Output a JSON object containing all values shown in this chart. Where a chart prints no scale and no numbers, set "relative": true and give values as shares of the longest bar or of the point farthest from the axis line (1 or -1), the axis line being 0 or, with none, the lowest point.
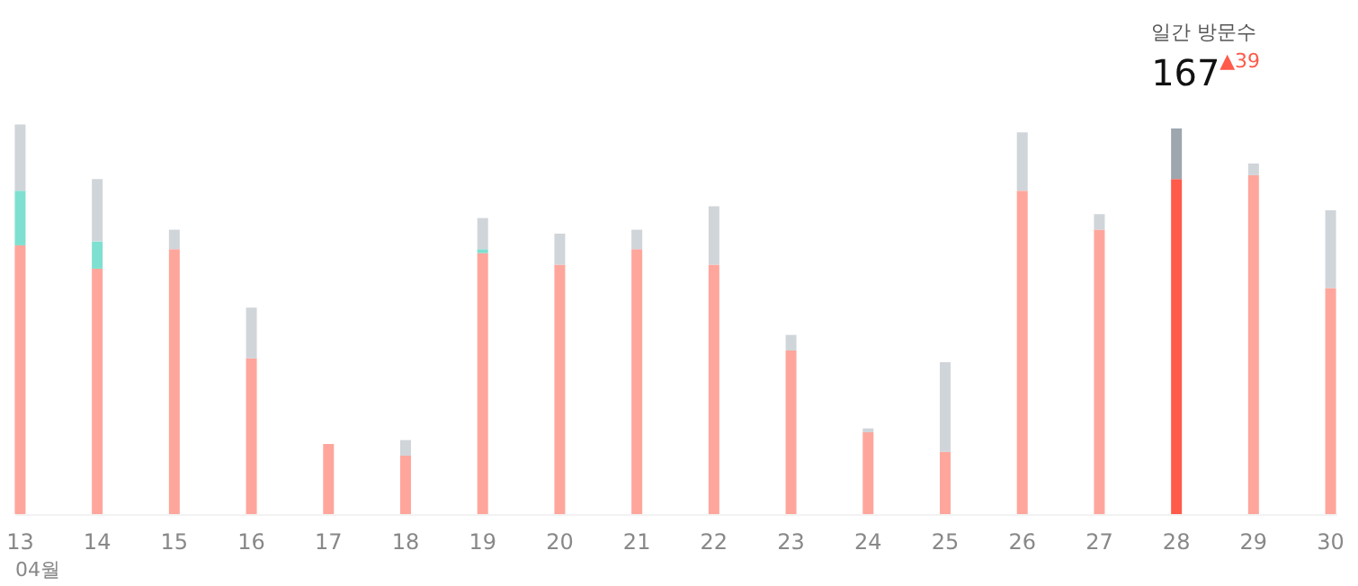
{
  "chart_data": {
    "type": "bar",
    "stacked": true,
    "relative": true,
    "xlabel": "04월",
    "categories": [
      "13",
      "14",
      "15",
      "16",
      "17",
      "18",
      "19",
      "20",
      "21",
      "22",
      "23",
      "24",
      "25",
      "26",
      "27",
      "28",
      "29",
      "30"
    ],
    "series": [
      {
        "colors": [
          "#ffa69c",
          "#ffa69c",
          "#ffa69c",
          "#ffa69c",
          "#ffa69c",
          "#ffa69c",
          "#ffa69c",
          "#ffa69c",
          "#ffa69c",
          "#ffa69c",
          "#ffa69c",
          "#ffa69c",
          "#ffa69c",
          "#ffa69c",
          "#ffa69c",
          "#ff5a4a",
          "#ffa69c",
          "#ffa69c"
        ],
        "values": [
          0.69,
          0.63,
          0.68,
          0.4,
          0.18,
          0.15,
          0.67,
          0.64,
          0.68,
          0.64,
          0.42,
          0.21,
          0.16,
          0.83,
          0.73,
          0.86,
          0.87,
          0.58
        ]
      },
      {
        "color": "#7ee0d0",
        "values": [
          0.14,
          0.07,
          0,
          0,
          0,
          0,
          0.01,
          0,
          0,
          0,
          0,
          0,
          0,
          0,
          0,
          0,
          0,
          0
        ]
      },
      {
        "colors": [
          "#d0d5da",
          "#d0d5da",
          "#d0d5da",
          "#d0d5da",
          "#d0d5da",
          "#d0d5da",
          "#d0d5da",
          "#d0d5da",
          "#d0d5da",
          "#d0d5da",
          "#d0d5da",
          "#d0d5da",
          "#d0d5da",
          "#d0d5da",
          "#d0d5da",
          "#9ea6ae",
          "#d0d5da",
          "#d0d5da"
        ],
        "values": [
          0.17,
          0.16,
          0.05,
          0.13,
          0,
          0.04,
          0.08,
          0.08,
          0.05,
          0.15,
          0.04,
          0.01,
          0.23,
          0.15,
          0.04,
          0.13,
          0.03,
          0.2
        ]
      }
    ],
    "tick_labels": "x",
    "annotations": [
      "일간 방문수",
      {
        "text": "167",
        "x": "28",
        "y": 0.99
      },
      "▲39"
    ]
  }
}
